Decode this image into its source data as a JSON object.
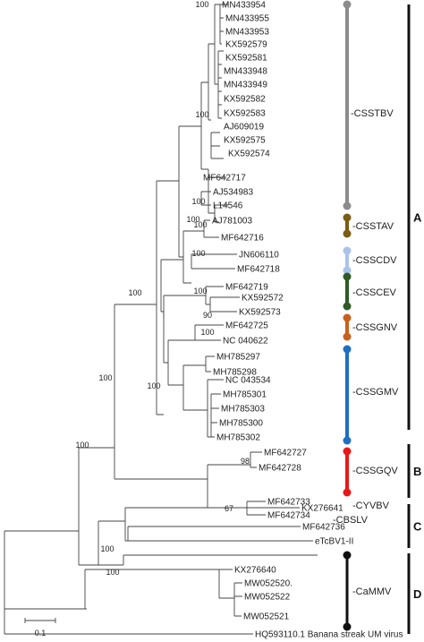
{
  "leaves": [
    {
      "label": "MN433954",
      "color": "#222222"
    },
    {
      "label": "MN433955",
      "color": "#222222"
    },
    {
      "label": "MN433953",
      "color": "#222222"
    },
    {
      "label": "KX592579",
      "color": "#222222"
    },
    {
      "label": "KX592581",
      "color": "#222222"
    },
    {
      "label": "MN433948",
      "color": "#222222"
    },
    {
      "label": "MN433949",
      "color": "#222222"
    },
    {
      "label": "KX592582",
      "color": "#222222"
    },
    {
      "label": "KX592583",
      "color": "#222222"
    },
    {
      "label": "AJ609019",
      "color": "#222222"
    },
    {
      "label": "KX592575",
      "color": "#222222"
    },
    {
      "label": "KX592574",
      "color": "#222222"
    },
    {
      "label": "MF642717",
      "color": "#222222"
    },
    {
      "label": "AJ534983",
      "color": "#222222"
    },
    {
      "label": "L14546",
      "color": "#222222"
    },
    {
      "label": "AJ781003",
      "color": "#222222"
    },
    {
      "label": "MF642716",
      "color": "#222222"
    },
    {
      "label": "JN606110",
      "color": "#222222"
    },
    {
      "label": "MF642718",
      "color": "#222222"
    },
    {
      "label": "MF642719",
      "color": "#222222"
    },
    {
      "label": "KX592572",
      "color": "#222222"
    },
    {
      "label": "KX592573",
      "color": "#222222"
    },
    {
      "label": "MF642725",
      "color": "#222222"
    },
    {
      "label": "NC 040622",
      "color": "#222222"
    },
    {
      "label": "MH785297",
      "color": "#222222"
    },
    {
      "label": "MH785298",
      "color": "#222222"
    },
    {
      "label": "NC 043534",
      "color": "#222222"
    },
    {
      "label": "MH785301",
      "color": "#222222"
    },
    {
      "label": "MH785303",
      "color": "#222222"
    },
    {
      "label": "MH785300",
      "color": "#222222"
    },
    {
      "label": "MH785302",
      "color": "#222222"
    },
    {
      "label": "MF642727",
      "color": "#222222"
    },
    {
      "label": "MF642728",
      "color": "#222222"
    },
    {
      "label": "MF642733",
      "color": "#222222"
    },
    {
      "label": "MF642734",
      "color": "#222222"
    },
    {
      "label": "KX276641",
      "color": "#222222"
    },
    {
      "label": "MF642736",
      "color": "#222222"
    },
    {
      "label": "eTcBV1-II",
      "color": "#e02020"
    },
    {
      "label": "KX276640",
      "color": "#222222"
    },
    {
      "label": "MW052520.",
      "color": "#222222"
    },
    {
      "label": "MW052522",
      "color": "#222222"
    },
    {
      "label": "MW052521",
      "color": "#222222"
    },
    {
      "label": "HQ593110.1 Banana streak UM virus",
      "color": "#222222"
    }
  ],
  "bootstrap": [
    "100",
    "100",
    "100",
    "100",
    "100",
    "100",
    "90",
    "100",
    "100",
    "100",
    "100",
    "100",
    "100",
    "98",
    "67",
    "100",
    "100"
  ],
  "clades": [
    {
      "name": "-CSSTBV",
      "color": "#8c8c8c"
    },
    {
      "name": "-CSSTAV",
      "color": "#7a5c12"
    },
    {
      "name": "-CSSCDV",
      "color": "#a9c3e8"
    },
    {
      "name": "-CSSCEV",
      "color": "#2e5a26"
    },
    {
      "name": "-CSSGNV",
      "color": "#c8601e"
    },
    {
      "name": "-CSSGMV",
      "color": "#1f6fc0"
    },
    {
      "name": "-CSSGQV",
      "color": "#e81818"
    },
    {
      "name": "-CYVBV",
      "color": "#222222"
    },
    {
      "name": "-CBSLV",
      "color": "#222222"
    },
    {
      "name": "-CaMMV",
      "color": "#111111"
    }
  ],
  "groups": [
    "A",
    "B",
    "C",
    "D"
  ],
  "scale_label": "0.1"
}
